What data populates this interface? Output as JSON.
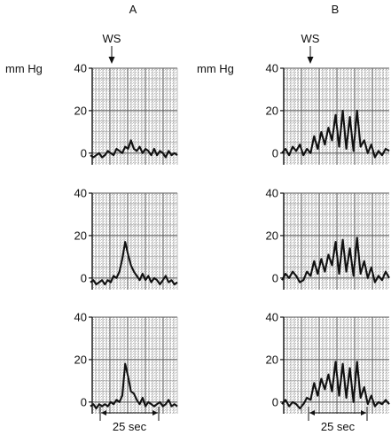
{
  "panel_a_label": "A",
  "panel_b_label": "B",
  "unit_label": "mm Hg",
  "stimulus_label": "WS",
  "time_scale_label": "25 sec",
  "chart_data": [
    {
      "type": "line",
      "panel": "A",
      "trace": 1,
      "ylabel": "mm Hg",
      "yticks": [
        0,
        20,
        40
      ],
      "ylim": [
        -3,
        40
      ],
      "x": [
        0,
        3,
        6,
        9,
        12,
        15,
        18,
        21,
        24,
        27,
        30,
        33,
        36,
        39,
        42,
        45,
        48,
        51,
        54,
        57,
        60,
        63,
        66,
        69,
        72,
        75,
        78,
        81,
        84,
        87,
        90
      ],
      "values": [
        -1,
        -2,
        -1,
        0,
        -2,
        -1,
        1,
        0,
        -1,
        2,
        1,
        0,
        3,
        2,
        6,
        2,
        1,
        3,
        0,
        2,
        1,
        -1,
        2,
        -1,
        1,
        0,
        -2,
        1,
        -1,
        0,
        -1
      ]
    },
    {
      "type": "line",
      "panel": "A",
      "trace": 2,
      "ylabel": "mm Hg",
      "yticks": [
        0,
        20,
        40
      ],
      "ylim": [
        -3,
        40
      ],
      "x": [
        0,
        3,
        6,
        9,
        12,
        15,
        18,
        21,
        24,
        27,
        30,
        33,
        36,
        39,
        42,
        45,
        48,
        51,
        54,
        57,
        60,
        63,
        66,
        69,
        72,
        75,
        78,
        81,
        84,
        87,
        90
      ],
      "values": [
        -2,
        -1,
        -3,
        -2,
        -1,
        -3,
        -1,
        -2,
        1,
        0,
        3,
        9,
        17,
        11,
        6,
        3,
        1,
        -1,
        2,
        -1,
        1,
        -2,
        0,
        -1,
        -3,
        -1,
        1,
        -2,
        -1,
        -3,
        -2
      ]
    },
    {
      "type": "line",
      "panel": "A",
      "trace": 3,
      "ylabel": "mm Hg",
      "yticks": [
        0,
        20,
        40
      ],
      "ylim": [
        -3,
        40
      ],
      "x": [
        0,
        3,
        6,
        9,
        12,
        15,
        18,
        21,
        24,
        27,
        30,
        33,
        36,
        39,
        42,
        45,
        48,
        51,
        54,
        57,
        60,
        63,
        66,
        69,
        72,
        75,
        78,
        81,
        84,
        87,
        90
      ],
      "values": [
        -2,
        -1,
        -3,
        -1,
        -2,
        -1,
        -2,
        0,
        -1,
        1,
        0,
        3,
        18,
        12,
        5,
        4,
        1,
        -1,
        2,
        -2,
        0,
        -1,
        -2,
        -1,
        0,
        -2,
        -1,
        1,
        -2,
        -1,
        -2
      ]
    },
    {
      "type": "line",
      "panel": "B",
      "trace": 1,
      "ylabel": "mm Hg",
      "yticks": [
        0,
        20,
        40
      ],
      "ylim": [
        -3,
        40
      ],
      "x": [
        0,
        3,
        6,
        9,
        12,
        15,
        18,
        21,
        24,
        27,
        30,
        33,
        36,
        39,
        42,
        45,
        48,
        51,
        54,
        57,
        60,
        63,
        66,
        69,
        72,
        75,
        78,
        81,
        84,
        87,
        90
      ],
      "values": [
        0,
        2,
        -1,
        3,
        1,
        4,
        -1,
        2,
        0,
        8,
        2,
        10,
        4,
        12,
        6,
        18,
        3,
        20,
        2,
        17,
        1,
        20,
        3,
        6,
        0,
        4,
        -2,
        1,
        -1,
        2,
        1
      ]
    },
    {
      "type": "line",
      "panel": "B",
      "trace": 2,
      "ylabel": "mm Hg",
      "yticks": [
        0,
        20,
        40
      ],
      "ylim": [
        -3,
        40
      ],
      "x": [
        0,
        3,
        6,
        9,
        12,
        15,
        18,
        21,
        24,
        27,
        30,
        33,
        36,
        39,
        42,
        45,
        48,
        51,
        54,
        57,
        60,
        63,
        66,
        69,
        72,
        75,
        78,
        81,
        84,
        87,
        90
      ],
      "values": [
        -1,
        2,
        0,
        3,
        1,
        -2,
        -1,
        3,
        1,
        8,
        2,
        9,
        3,
        11,
        6,
        17,
        2,
        18,
        3,
        14,
        1,
        19,
        2,
        8,
        0,
        5,
        -2,
        1,
        -1,
        3,
        0
      ]
    },
    {
      "type": "line",
      "panel": "B",
      "trace": 3,
      "ylabel": "mm Hg",
      "yticks": [
        0,
        20,
        40
      ],
      "ylim": [
        -3,
        40
      ],
      "x": [
        0,
        3,
        6,
        9,
        12,
        15,
        18,
        21,
        24,
        27,
        30,
        33,
        36,
        39,
        42,
        45,
        48,
        51,
        54,
        57,
        60,
        63,
        66,
        69,
        72,
        75,
        78,
        81,
        84,
        87,
        90
      ],
      "values": [
        -1,
        1,
        -2,
        0,
        -1,
        -3,
        -1,
        2,
        1,
        9,
        3,
        11,
        6,
        13,
        5,
        19,
        3,
        18,
        2,
        16,
        0,
        19,
        2,
        7,
        -1,
        3,
        -2,
        0,
        -1,
        1,
        -1
      ]
    }
  ]
}
